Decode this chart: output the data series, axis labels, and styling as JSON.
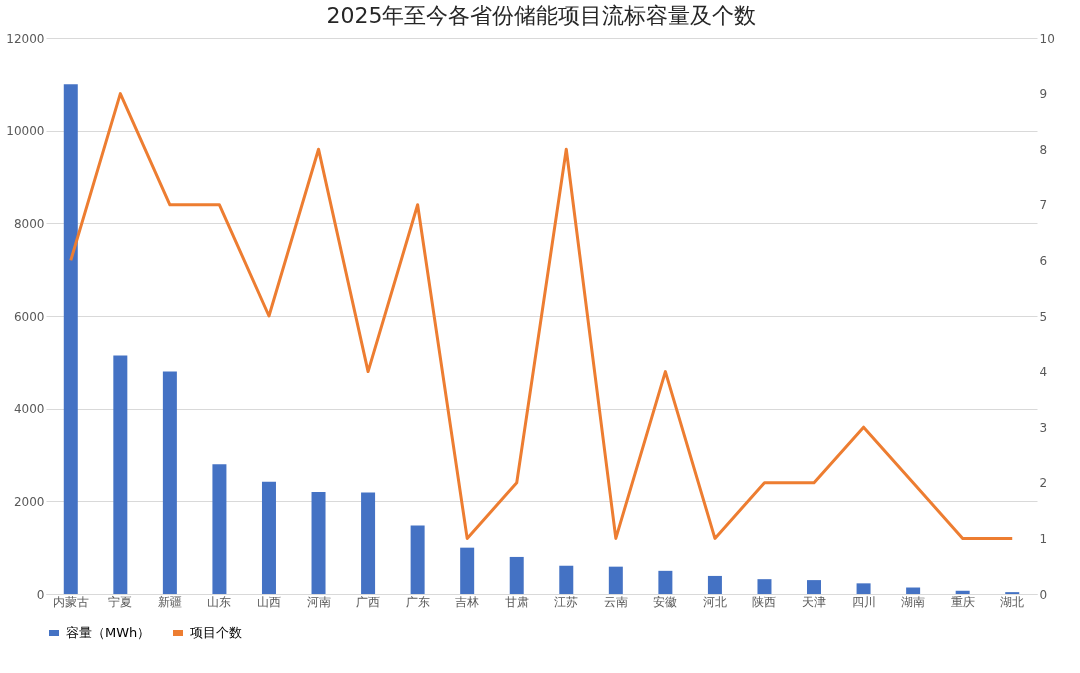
{
  "chart_data": {
    "type": "bar",
    "title": "2025年至今各省份储能项目流标容量及个数",
    "categories": [
      "内蒙古",
      "宁夏",
      "新疆",
      "山东",
      "山西",
      "河南",
      "广西",
      "广东",
      "吉林",
      "甘肃",
      "江苏",
      "云南",
      "安徽",
      "河北",
      "陕西",
      "天津",
      "四川",
      "湖南",
      "重庆",
      "湖北"
    ],
    "series": [
      {
        "name": "容量（MWh）",
        "color": "#4472c4",
        "values": [
          11000,
          5150,
          4800,
          2800,
          2420,
          2200,
          2190,
          1480,
          1000,
          800,
          610,
          590,
          500,
          390,
          320,
          300,
          230,
          140,
          70,
          40
        ]
      },
      {
        "name": "项目个数",
        "type": "line",
        "axis": "y2",
        "color": "#ed7d31",
        "values": [
          6,
          9,
          7,
          7,
          5,
          8,
          4,
          7,
          1,
          2,
          8,
          1,
          4,
          1,
          2,
          2,
          3,
          2,
          1,
          1
        ]
      }
    ],
    "ylim": [
      0,
      12000
    ],
    "yticks": [
      0,
      2000,
      4000,
      6000,
      8000,
      10000,
      12000
    ],
    "y2lim": [
      0,
      10
    ],
    "y2ticks": [
      0,
      1,
      2,
      3,
      4,
      5,
      6,
      7,
      8,
      9,
      10
    ],
    "grid": "y",
    "legend": "bottom",
    "marker": "none",
    "line_style": "solid"
  }
}
